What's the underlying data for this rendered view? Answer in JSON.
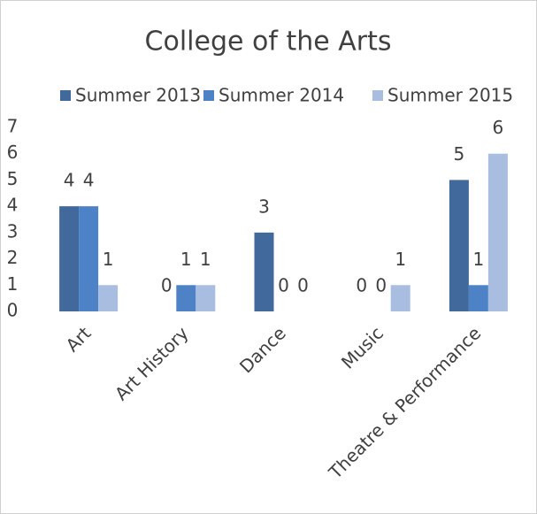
{
  "chart_data": {
    "type": "bar",
    "title": "College of the Arts",
    "categories": [
      "Art",
      "Art History",
      "Dance",
      "Music",
      "Theatre & Performance"
    ],
    "series": [
      {
        "name": "Summer 2013",
        "color": "#41699c",
        "values": [
          4,
          0,
          3,
          0,
          5
        ]
      },
      {
        "name": "Summer 2014",
        "color": "#4d82c6",
        "values": [
          4,
          1,
          0,
          0,
          1
        ]
      },
      {
        "name": "Summer 2015",
        "color": "#a8bde0",
        "values": [
          1,
          1,
          0,
          1,
          6
        ]
      }
    ],
    "ylim": [
      0,
      7
    ],
    "yticks": [
      0,
      1,
      2,
      3,
      4,
      5,
      6,
      7
    ],
    "grid": false,
    "legend": "top"
  }
}
